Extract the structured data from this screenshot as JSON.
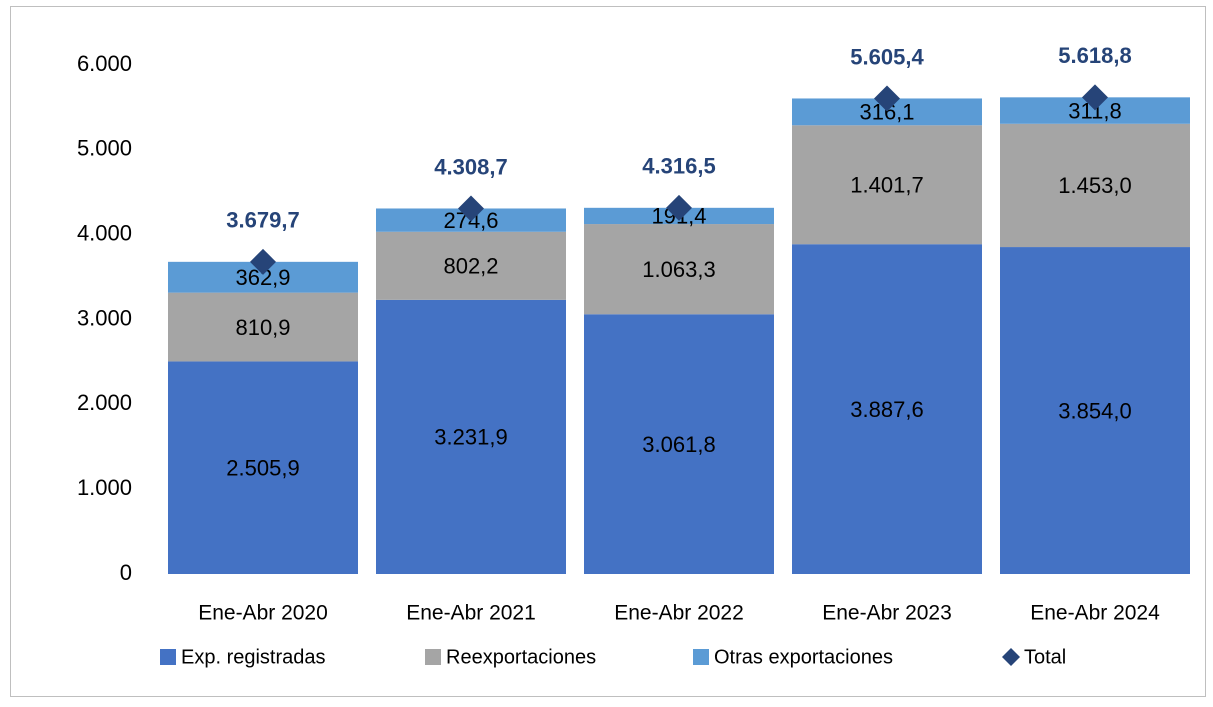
{
  "chart_data": {
    "type": "bar",
    "stacked": true,
    "categories": [
      "Ene-Abr 2020",
      "Ene-Abr 2021",
      "Ene-Abr 2022",
      "Ene-Abr 2023",
      "Ene-Abr 2024"
    ],
    "series": [
      {
        "name": "Exp. registradas",
        "color": "#4472c4",
        "values": [
          2505.9,
          3231.9,
          3061.8,
          3887.6,
          3854.0
        ],
        "value_labels": [
          "2.505,9",
          "3.231,9",
          "3.061,8",
          "3.887,6",
          "3.854,0"
        ]
      },
      {
        "name": "Reexportaciones",
        "color": "#a5a5a5",
        "values": [
          810.9,
          802.2,
          1063.3,
          1401.7,
          1453.0
        ],
        "value_labels": [
          "810,9",
          "802,2",
          "1.063,3",
          "1.401,7",
          "1.453,0"
        ]
      },
      {
        "name": "Otras exportaciones",
        "color": "#5b9bd5",
        "values": [
          362.9,
          274.6,
          191.4,
          316.1,
          311.8
        ],
        "value_labels": [
          "362,9",
          "274,6",
          "191,4",
          "316,1",
          "311,8"
        ]
      },
      {
        "name": "Total",
        "color": "#264478",
        "marker": "diamond",
        "values": [
          3679.7,
          4308.7,
          4316.5,
          5605.4,
          5618.8
        ],
        "value_labels": [
          "3.679,7",
          "4.308,7",
          "4.316,5",
          "5.605,4",
          "5.618,8"
        ]
      }
    ],
    "ylim": [
      0,
      6000
    ],
    "yticks": [
      0,
      {
        "value": 1000,
        "label": "1.000"
      },
      {
        "value": 2000,
        "label": "2.000"
      },
      {
        "value": 3000,
        "label": "3.000"
      },
      {
        "value": 4000,
        "label": "4.000"
      },
      {
        "value": 5000,
        "label": "5.000"
      },
      {
        "value": 6000,
        "label": "6.000"
      }
    ],
    "grid": false,
    "legend": "bottom"
  }
}
